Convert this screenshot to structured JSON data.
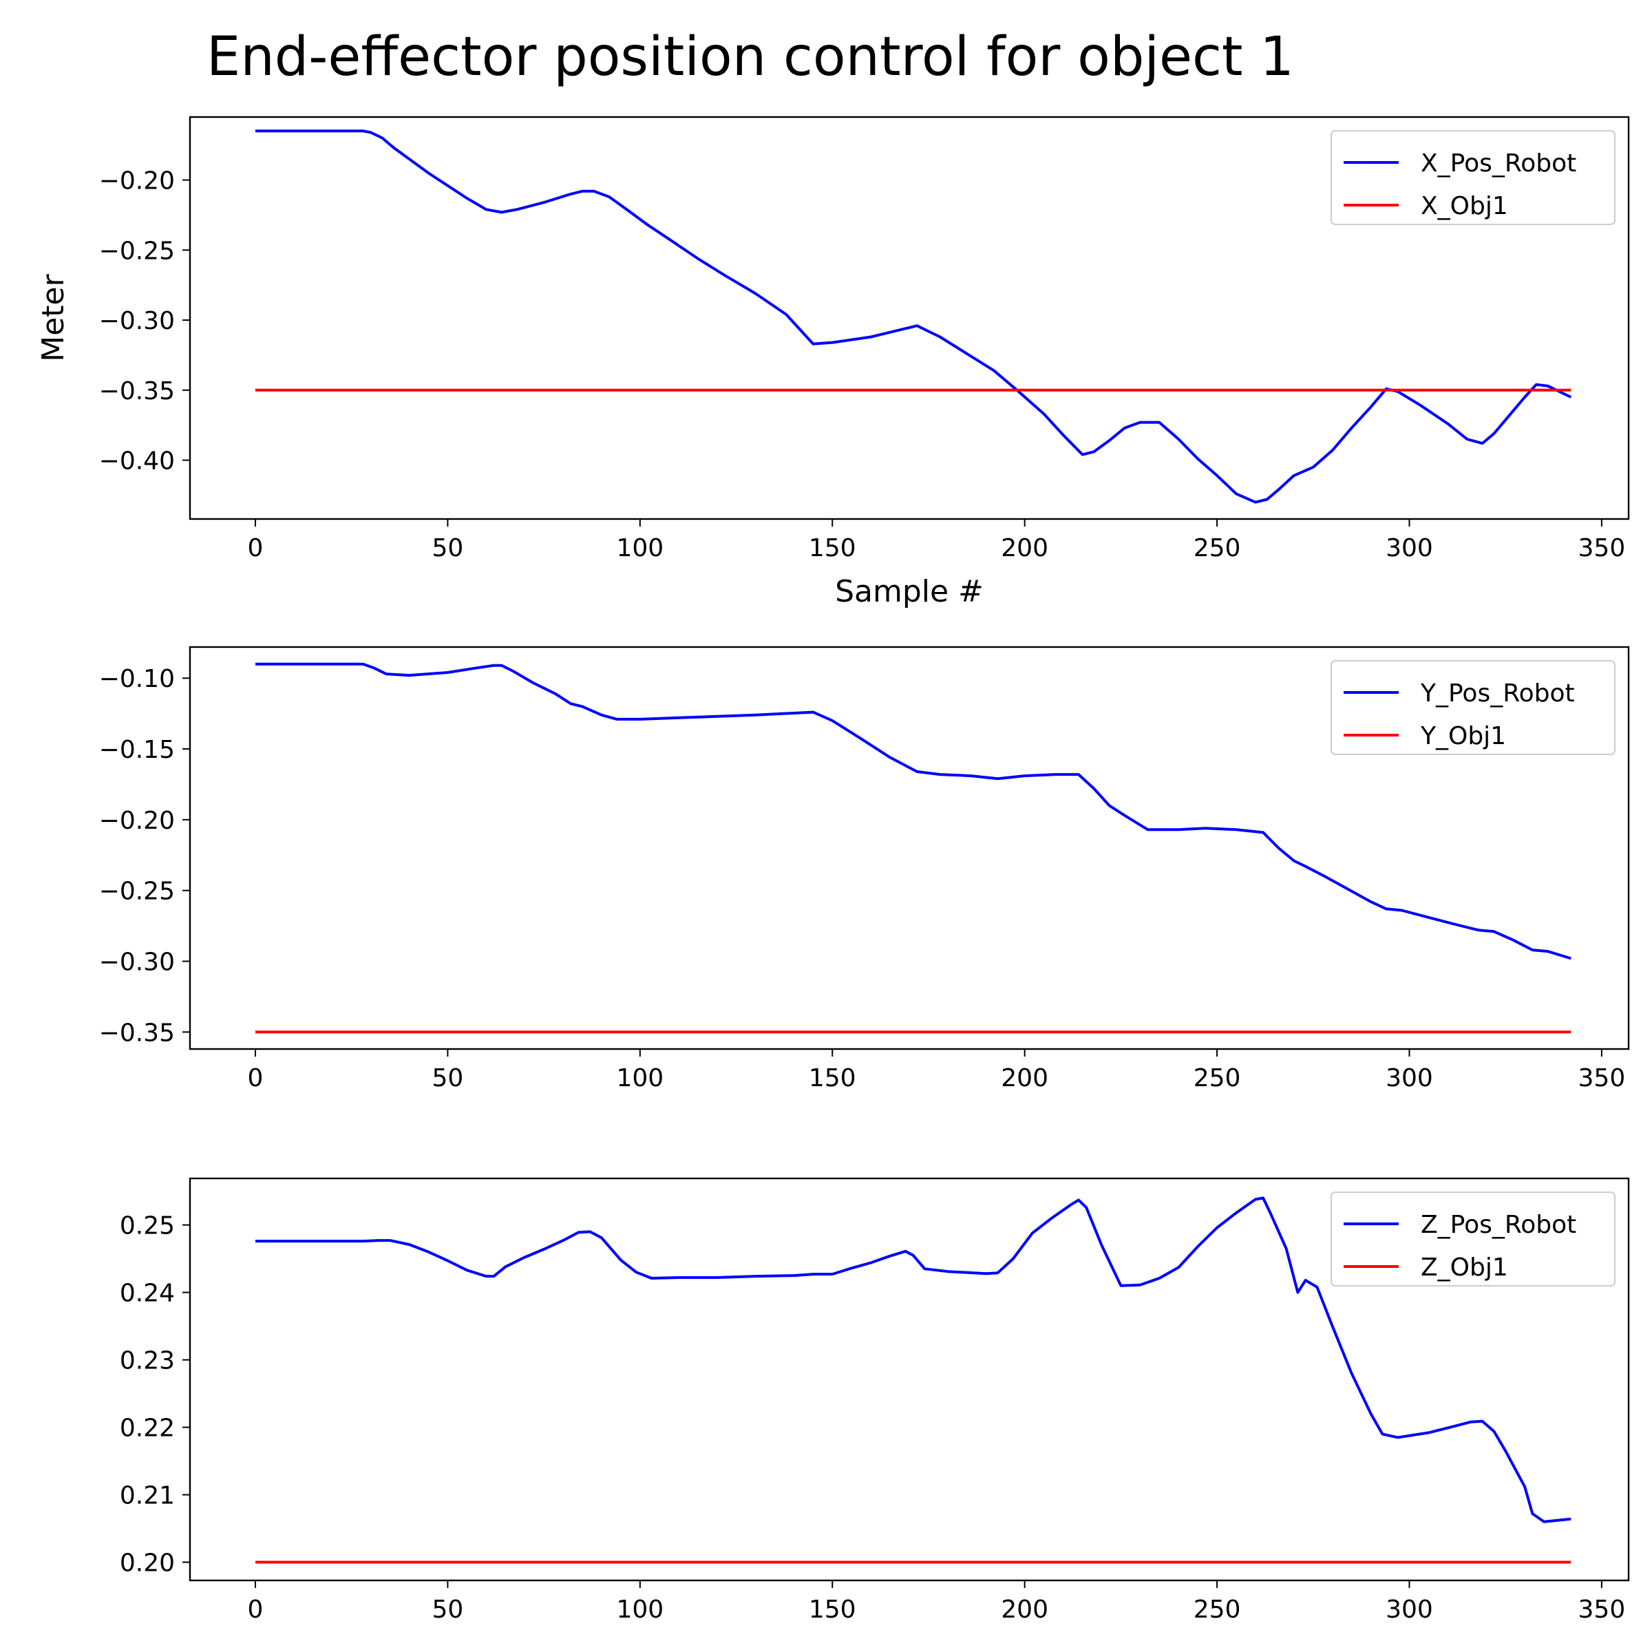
{
  "figure_title": "End-effector position control for object 1",
  "colors": {
    "robot": "#0000ff",
    "object": "#ff0000"
  },
  "chart_data": [
    {
      "type": "line",
      "xlabel": "Sample #",
      "ylabel": "Meter",
      "xlim": [
        -17,
        357
      ],
      "ylim": [
        -0.442,
        -0.155
      ],
      "xticks": [
        0,
        50,
        100,
        150,
        200,
        250,
        300,
        350
      ],
      "xtick_labels": [
        "0",
        "50",
        "100",
        "150",
        "200",
        "250",
        "300",
        "350"
      ],
      "yticks": [
        -0.2,
        -0.25,
        -0.3,
        -0.35,
        -0.4
      ],
      "ytick_labels": [
        "−0.20",
        "−0.25",
        "−0.30",
        "−0.35",
        "−0.40"
      ],
      "legend": "top-right",
      "grid": false,
      "series": [
        {
          "name": "X_Pos_Robot",
          "color": "#0000ff",
          "points": [
            [
              0,
              -0.165
            ],
            [
              28,
              -0.165
            ],
            [
              30,
              -0.166
            ],
            [
              33,
              -0.17
            ],
            [
              36,
              -0.177
            ],
            [
              40,
              -0.185
            ],
            [
              45,
              -0.195
            ],
            [
              50,
              -0.204
            ],
            [
              55,
              -0.213
            ],
            [
              60,
              -0.221
            ],
            [
              64,
              -0.223
            ],
            [
              68,
              -0.221
            ],
            [
              75,
              -0.216
            ],
            [
              82,
              -0.21
            ],
            [
              85,
              -0.208
            ],
            [
              88,
              -0.208
            ],
            [
              92,
              -0.212
            ],
            [
              97,
              -0.222
            ],
            [
              102,
              -0.232
            ],
            [
              108,
              -0.243
            ],
            [
              115,
              -0.256
            ],
            [
              122,
              -0.268
            ],
            [
              130,
              -0.281
            ],
            [
              138,
              -0.296
            ],
            [
              145,
              -0.317
            ],
            [
              150,
              -0.316
            ],
            [
              160,
              -0.312
            ],
            [
              172,
              -0.304
            ],
            [
              178,
              -0.312
            ],
            [
              185,
              -0.324
            ],
            [
              192,
              -0.336
            ],
            [
              198,
              -0.35
            ],
            [
              205,
              -0.367
            ],
            [
              210,
              -0.382
            ],
            [
              215,
              -0.396
            ],
            [
              218,
              -0.394
            ],
            [
              222,
              -0.386
            ],
            [
              226,
              -0.377
            ],
            [
              230,
              -0.373
            ],
            [
              235,
              -0.373
            ],
            [
              240,
              -0.385
            ],
            [
              245,
              -0.399
            ],
            [
              250,
              -0.411
            ],
            [
              255,
              -0.424
            ],
            [
              260,
              -0.43
            ],
            [
              263,
              -0.428
            ],
            [
              266,
              -0.421
            ],
            [
              270,
              -0.411
            ],
            [
              275,
              -0.405
            ],
            [
              280,
              -0.393
            ],
            [
              285,
              -0.377
            ],
            [
              290,
              -0.362
            ],
            [
              294,
              -0.349
            ],
            [
              297,
              -0.351
            ],
            [
              303,
              -0.361
            ],
            [
              310,
              -0.374
            ],
            [
              315,
              -0.385
            ],
            [
              319,
              -0.388
            ],
            [
              322,
              -0.381
            ],
            [
              326,
              -0.368
            ],
            [
              330,
              -0.355
            ],
            [
              333,
              -0.346
            ],
            [
              336,
              -0.347
            ],
            [
              339,
              -0.351
            ],
            [
              342,
              -0.355
            ]
          ]
        },
        {
          "name": "X_Obj1",
          "color": "#ff0000",
          "points": [
            [
              0,
              -0.35
            ],
            [
              342,
              -0.35
            ]
          ]
        }
      ]
    },
    {
      "type": "line",
      "xlabel": "",
      "ylabel": "",
      "xlim": [
        -17,
        357
      ],
      "ylim": [
        -0.362,
        -0.078
      ],
      "xticks": [
        0,
        50,
        100,
        150,
        200,
        250,
        300,
        350
      ],
      "xtick_labels": [
        "0",
        "50",
        "100",
        "150",
        "200",
        "250",
        "300",
        "350"
      ],
      "yticks": [
        -0.1,
        -0.15,
        -0.2,
        -0.25,
        -0.3,
        -0.35
      ],
      "ytick_labels": [
        "−0.10",
        "−0.15",
        "−0.20",
        "−0.25",
        "−0.30",
        "−0.35"
      ],
      "legend": "top-right",
      "grid": false,
      "series": [
        {
          "name": "Y_Pos_Robot",
          "color": "#0000ff",
          "points": [
            [
              0,
              -0.09
            ],
            [
              28,
              -0.09
            ],
            [
              31,
              -0.093
            ],
            [
              34,
              -0.097
            ],
            [
              40,
              -0.098
            ],
            [
              50,
              -0.096
            ],
            [
              57,
              -0.093
            ],
            [
              62,
              -0.091
            ],
            [
              64,
              -0.091
            ],
            [
              67,
              -0.095
            ],
            [
              72,
              -0.103
            ],
            [
              78,
              -0.111
            ],
            [
              82,
              -0.118
            ],
            [
              85,
              -0.12
            ],
            [
              90,
              -0.126
            ],
            [
              94,
              -0.129
            ],
            [
              100,
              -0.129
            ],
            [
              110,
              -0.128
            ],
            [
              120,
              -0.127
            ],
            [
              130,
              -0.126
            ],
            [
              145,
              -0.124
            ],
            [
              150,
              -0.13
            ],
            [
              157,
              -0.142
            ],
            [
              165,
              -0.156
            ],
            [
              172,
              -0.166
            ],
            [
              178,
              -0.168
            ],
            [
              186,
              -0.169
            ],
            [
              193,
              -0.171
            ],
            [
              200,
              -0.169
            ],
            [
              208,
              -0.168
            ],
            [
              214,
              -0.168
            ],
            [
              218,
              -0.178
            ],
            [
              222,
              -0.19
            ],
            [
              226,
              -0.197
            ],
            [
              232,
              -0.207
            ],
            [
              240,
              -0.207
            ],
            [
              247,
              -0.206
            ],
            [
              255,
              -0.207
            ],
            [
              262,
              -0.209
            ],
            [
              266,
              -0.22
            ],
            [
              270,
              -0.229
            ],
            [
              273,
              -0.233
            ],
            [
              278,
              -0.24
            ],
            [
              284,
              -0.249
            ],
            [
              290,
              -0.258
            ],
            [
              294,
              -0.263
            ],
            [
              298,
              -0.264
            ],
            [
              305,
              -0.269
            ],
            [
              312,
              -0.274
            ],
            [
              318,
              -0.278
            ],
            [
              322,
              -0.279
            ],
            [
              327,
              -0.285
            ],
            [
              332,
              -0.292
            ],
            [
              336,
              -0.293
            ],
            [
              342,
              -0.298
            ]
          ]
        },
        {
          "name": "Y_Obj1",
          "color": "#ff0000",
          "points": [
            [
              0,
              -0.35
            ],
            [
              342,
              -0.35
            ]
          ]
        }
      ]
    },
    {
      "type": "line",
      "xlabel": "",
      "ylabel": "",
      "xlim": [
        -17,
        357
      ],
      "ylim": [
        0.1973,
        0.2569
      ],
      "xticks": [
        0,
        50,
        100,
        150,
        200,
        250,
        300,
        350
      ],
      "xtick_labels": [
        "0",
        "50",
        "100",
        "150",
        "200",
        "250",
        "300",
        "350"
      ],
      "yticks": [
        0.2,
        0.21,
        0.22,
        0.23,
        0.24,
        0.25
      ],
      "ytick_labels": [
        "0.20",
        "0.21",
        "0.22",
        "0.23",
        "0.24",
        "0.25"
      ],
      "legend": "top-right",
      "grid": false,
      "series": [
        {
          "name": "Z_Pos_Robot",
          "color": "#0000ff",
          "points": [
            [
              0,
              0.2476
            ],
            [
              28,
              0.2476
            ],
            [
              32,
              0.2477
            ],
            [
              35,
              0.2477
            ],
            [
              40,
              0.2471
            ],
            [
              45,
              0.246
            ],
            [
              50,
              0.2447
            ],
            [
              55,
              0.2433
            ],
            [
              60,
              0.2424
            ],
            [
              62,
              0.2424
            ],
            [
              65,
              0.2438
            ],
            [
              70,
              0.2452
            ],
            [
              75,
              0.2464
            ],
            [
              80,
              0.2477
            ],
            [
              84,
              0.2489
            ],
            [
              87,
              0.249
            ],
            [
              90,
              0.2481
            ],
            [
              95,
              0.2448
            ],
            [
              99,
              0.243
            ],
            [
              103,
              0.2421
            ],
            [
              110,
              0.2422
            ],
            [
              120,
              0.2422
            ],
            [
              130,
              0.2424
            ],
            [
              140,
              0.2425
            ],
            [
              145,
              0.2427
            ],
            [
              150,
              0.2427
            ],
            [
              155,
              0.2436
            ],
            [
              160,
              0.2444
            ],
            [
              165,
              0.2454
            ],
            [
              169,
              0.2461
            ],
            [
              171,
              0.2455
            ],
            [
              174,
              0.2435
            ],
            [
              180,
              0.2431
            ],
            [
              190,
              0.2428
            ],
            [
              193,
              0.2429
            ],
            [
              197,
              0.245
            ],
            [
              202,
              0.2488
            ],
            [
              207,
              0.251
            ],
            [
              212,
              0.253
            ],
            [
              214,
              0.2537
            ],
            [
              216,
              0.2526
            ],
            [
              220,
              0.247
            ],
            [
              225,
              0.241
            ],
            [
              230,
              0.2411
            ],
            [
              235,
              0.2421
            ],
            [
              240,
              0.2437
            ],
            [
              245,
              0.2468
            ],
            [
              250,
              0.2496
            ],
            [
              255,
              0.2518
            ],
            [
              260,
              0.2538
            ],
            [
              262,
              0.254
            ],
            [
              264,
              0.2516
            ],
            [
              268,
              0.2465
            ],
            [
              271,
              0.24
            ],
            [
              273,
              0.2418
            ],
            [
              276,
              0.2408
            ],
            [
              280,
              0.235
            ],
            [
              285,
              0.228
            ],
            [
              290,
              0.222
            ],
            [
              293,
              0.219
            ],
            [
              297,
              0.2185
            ],
            [
              305,
              0.2192
            ],
            [
              312,
              0.2202
            ],
            [
              316,
              0.2208
            ],
            [
              319,
              0.2209
            ],
            [
              322,
              0.2194
            ],
            [
              325,
              0.2165
            ],
            [
              330,
              0.2112
            ],
            [
              332,
              0.2072
            ],
            [
              335,
              0.206
            ],
            [
              342,
              0.2064
            ]
          ]
        },
        {
          "name": "Z_Obj1",
          "color": "#ff0000",
          "points": [
            [
              0,
              0.2
            ],
            [
              342,
              0.2
            ]
          ]
        }
      ]
    }
  ]
}
